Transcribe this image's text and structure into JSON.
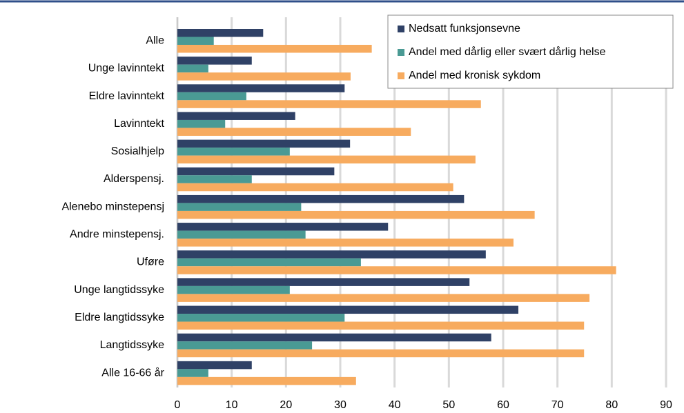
{
  "chart_data": {
    "type": "bar",
    "orientation": "horizontal",
    "categories": [
      "Alle",
      "Unge lavinntekt",
      "Eldre lavinntekt",
      "Lavinntekt",
      "Sosialhjelp",
      "Alderspensj.",
      "Alenebo minstepensj",
      "Andre minstepensj.",
      "Uføre",
      "Unge langtidssyke",
      "Eldre langtidssyke",
      "Langtidssyke",
      "Alle 16-66 år"
    ],
    "series": [
      {
        "name": "Nedsatt funksjonsevne",
        "color": "#2f4166",
        "values": [
          15.8,
          13.7,
          30.8,
          21.7,
          31.8,
          28.9,
          52.8,
          38.8,
          56.8,
          53.8,
          62.8,
          57.8,
          13.7
        ]
      },
      {
        "name": "Andel med dårlig eller svært dårlig helse",
        "color": "#4a9a94",
        "values": [
          6.7,
          5.7,
          12.7,
          8.8,
          20.7,
          13.7,
          22.8,
          23.6,
          33.8,
          20.7,
          30.8,
          24.8,
          5.7
        ]
      },
      {
        "name": "Andel med kronisk sykdom",
        "color": "#f7ab5f",
        "values": [
          35.8,
          31.9,
          55.9,
          43.0,
          54.9,
          50.8,
          65.8,
          61.9,
          80.8,
          75.9,
          74.9,
          74.9,
          32.9
        ]
      }
    ],
    "xlim": [
      0,
      90
    ],
    "xticks": [
      0,
      10,
      20,
      30,
      40,
      50,
      60,
      70,
      80,
      90
    ],
    "grid": true,
    "legend": "top-right"
  }
}
